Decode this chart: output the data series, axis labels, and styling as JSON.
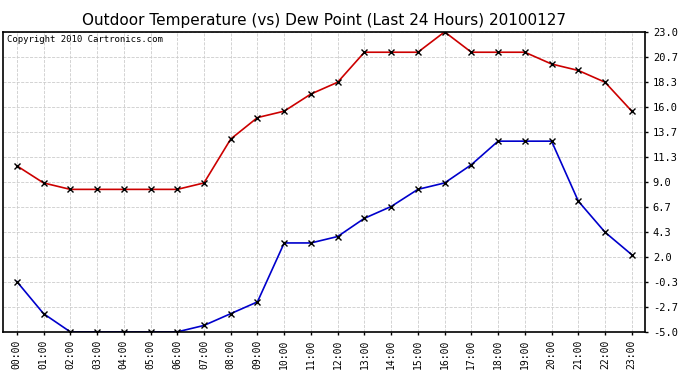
{
  "title": "Outdoor Temperature (vs) Dew Point (Last 24 Hours) 20100127",
  "copyright": "Copyright 2010 Cartronics.com",
  "hours": [
    "00:00",
    "01:00",
    "02:00",
    "03:00",
    "04:00",
    "05:00",
    "06:00",
    "07:00",
    "08:00",
    "09:00",
    "10:00",
    "11:00",
    "12:00",
    "13:00",
    "14:00",
    "15:00",
    "16:00",
    "17:00",
    "18:00",
    "19:00",
    "20:00",
    "21:00",
    "22:00",
    "23:00"
  ],
  "temp": [
    10.5,
    8.9,
    8.3,
    8.3,
    8.3,
    8.3,
    8.3,
    8.9,
    13.0,
    15.0,
    15.6,
    17.2,
    18.3,
    21.1,
    21.1,
    21.1,
    23.0,
    21.1,
    21.1,
    21.1,
    20.0,
    19.4,
    18.3,
    15.6
  ],
  "dewpoint": [
    -0.3,
    -3.3,
    -5.0,
    -5.0,
    -5.0,
    -5.0,
    -5.0,
    -4.4,
    -3.3,
    -2.2,
    3.3,
    3.3,
    3.9,
    5.6,
    6.7,
    8.3,
    8.9,
    10.6,
    12.8,
    12.8,
    12.8,
    7.2,
    4.3,
    2.2
  ],
  "temp_color": "#cc0000",
  "dew_color": "#0000cc",
  "yticks": [
    23.0,
    20.7,
    18.3,
    16.0,
    13.7,
    11.3,
    9.0,
    6.7,
    4.3,
    2.0,
    -0.3,
    -2.7,
    -5.0
  ],
  "ylim": [
    -5.0,
    23.0
  ],
  "background_color": "#ffffff",
  "grid_color": "#cccccc",
  "title_fontsize": 11,
  "marker": "x",
  "marker_size": 4,
  "marker_edge_width": 1.0,
  "line_width": 1.2
}
